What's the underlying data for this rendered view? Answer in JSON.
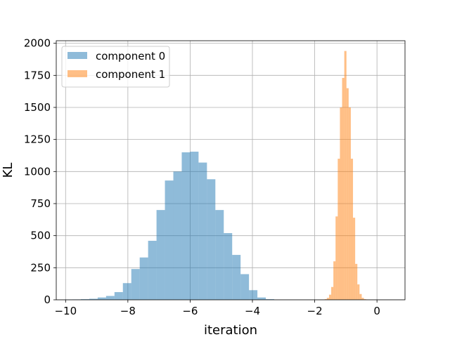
{
  "chart_data": {
    "type": "histogram",
    "xlabel": "iteration",
    "ylabel": "KL",
    "xlim": [
      -10.3,
      0.9
    ],
    "ylim": [
      0,
      2020
    ],
    "xticks": [
      -10,
      -8,
      -6,
      -4,
      -2,
      0
    ],
    "yticks": [
      0,
      250,
      500,
      750,
      1000,
      1250,
      1500,
      1750,
      2000
    ],
    "grid": true,
    "legend_position": "top-left",
    "series": [
      {
        "name": "component 0",
        "color": "#1f77b4",
        "alpha": 0.5,
        "bin_edges": [
          -10.05,
          -9.78,
          -9.51,
          -9.24,
          -8.97,
          -8.7,
          -8.43,
          -8.16,
          -7.89,
          -7.62,
          -7.35,
          -7.08,
          -6.81,
          -6.54,
          -6.27,
          -6.0,
          -5.73,
          -5.46,
          -5.19,
          -4.92,
          -4.65,
          -4.38,
          -4.11,
          -3.84,
          -3.57,
          -3.3
        ],
        "counts": [
          2,
          3,
          5,
          8,
          18,
          30,
          60,
          130,
          240,
          330,
          460,
          700,
          930,
          1000,
          1150,
          1155,
          1070,
          940,
          700,
          520,
          350,
          200,
          75,
          18,
          5
        ]
      },
      {
        "name": "component 1",
        "color": "#ff7f0e",
        "alpha": 0.5,
        "bin_edges": [
          -1.68,
          -1.61,
          -1.54,
          -1.47,
          -1.4,
          -1.33,
          -1.26,
          -1.19,
          -1.12,
          -1.05,
          -0.98,
          -0.91,
          -0.84,
          -0.77,
          -0.7,
          -0.63,
          -0.56,
          -0.49,
          -0.42,
          -0.35,
          -0.28
        ],
        "counts": [
          5,
          15,
          40,
          100,
          300,
          650,
          1100,
          1500,
          1730,
          1940,
          1650,
          1500,
          1100,
          640,
          280,
          120,
          45,
          15,
          5,
          2
        ]
      }
    ]
  }
}
